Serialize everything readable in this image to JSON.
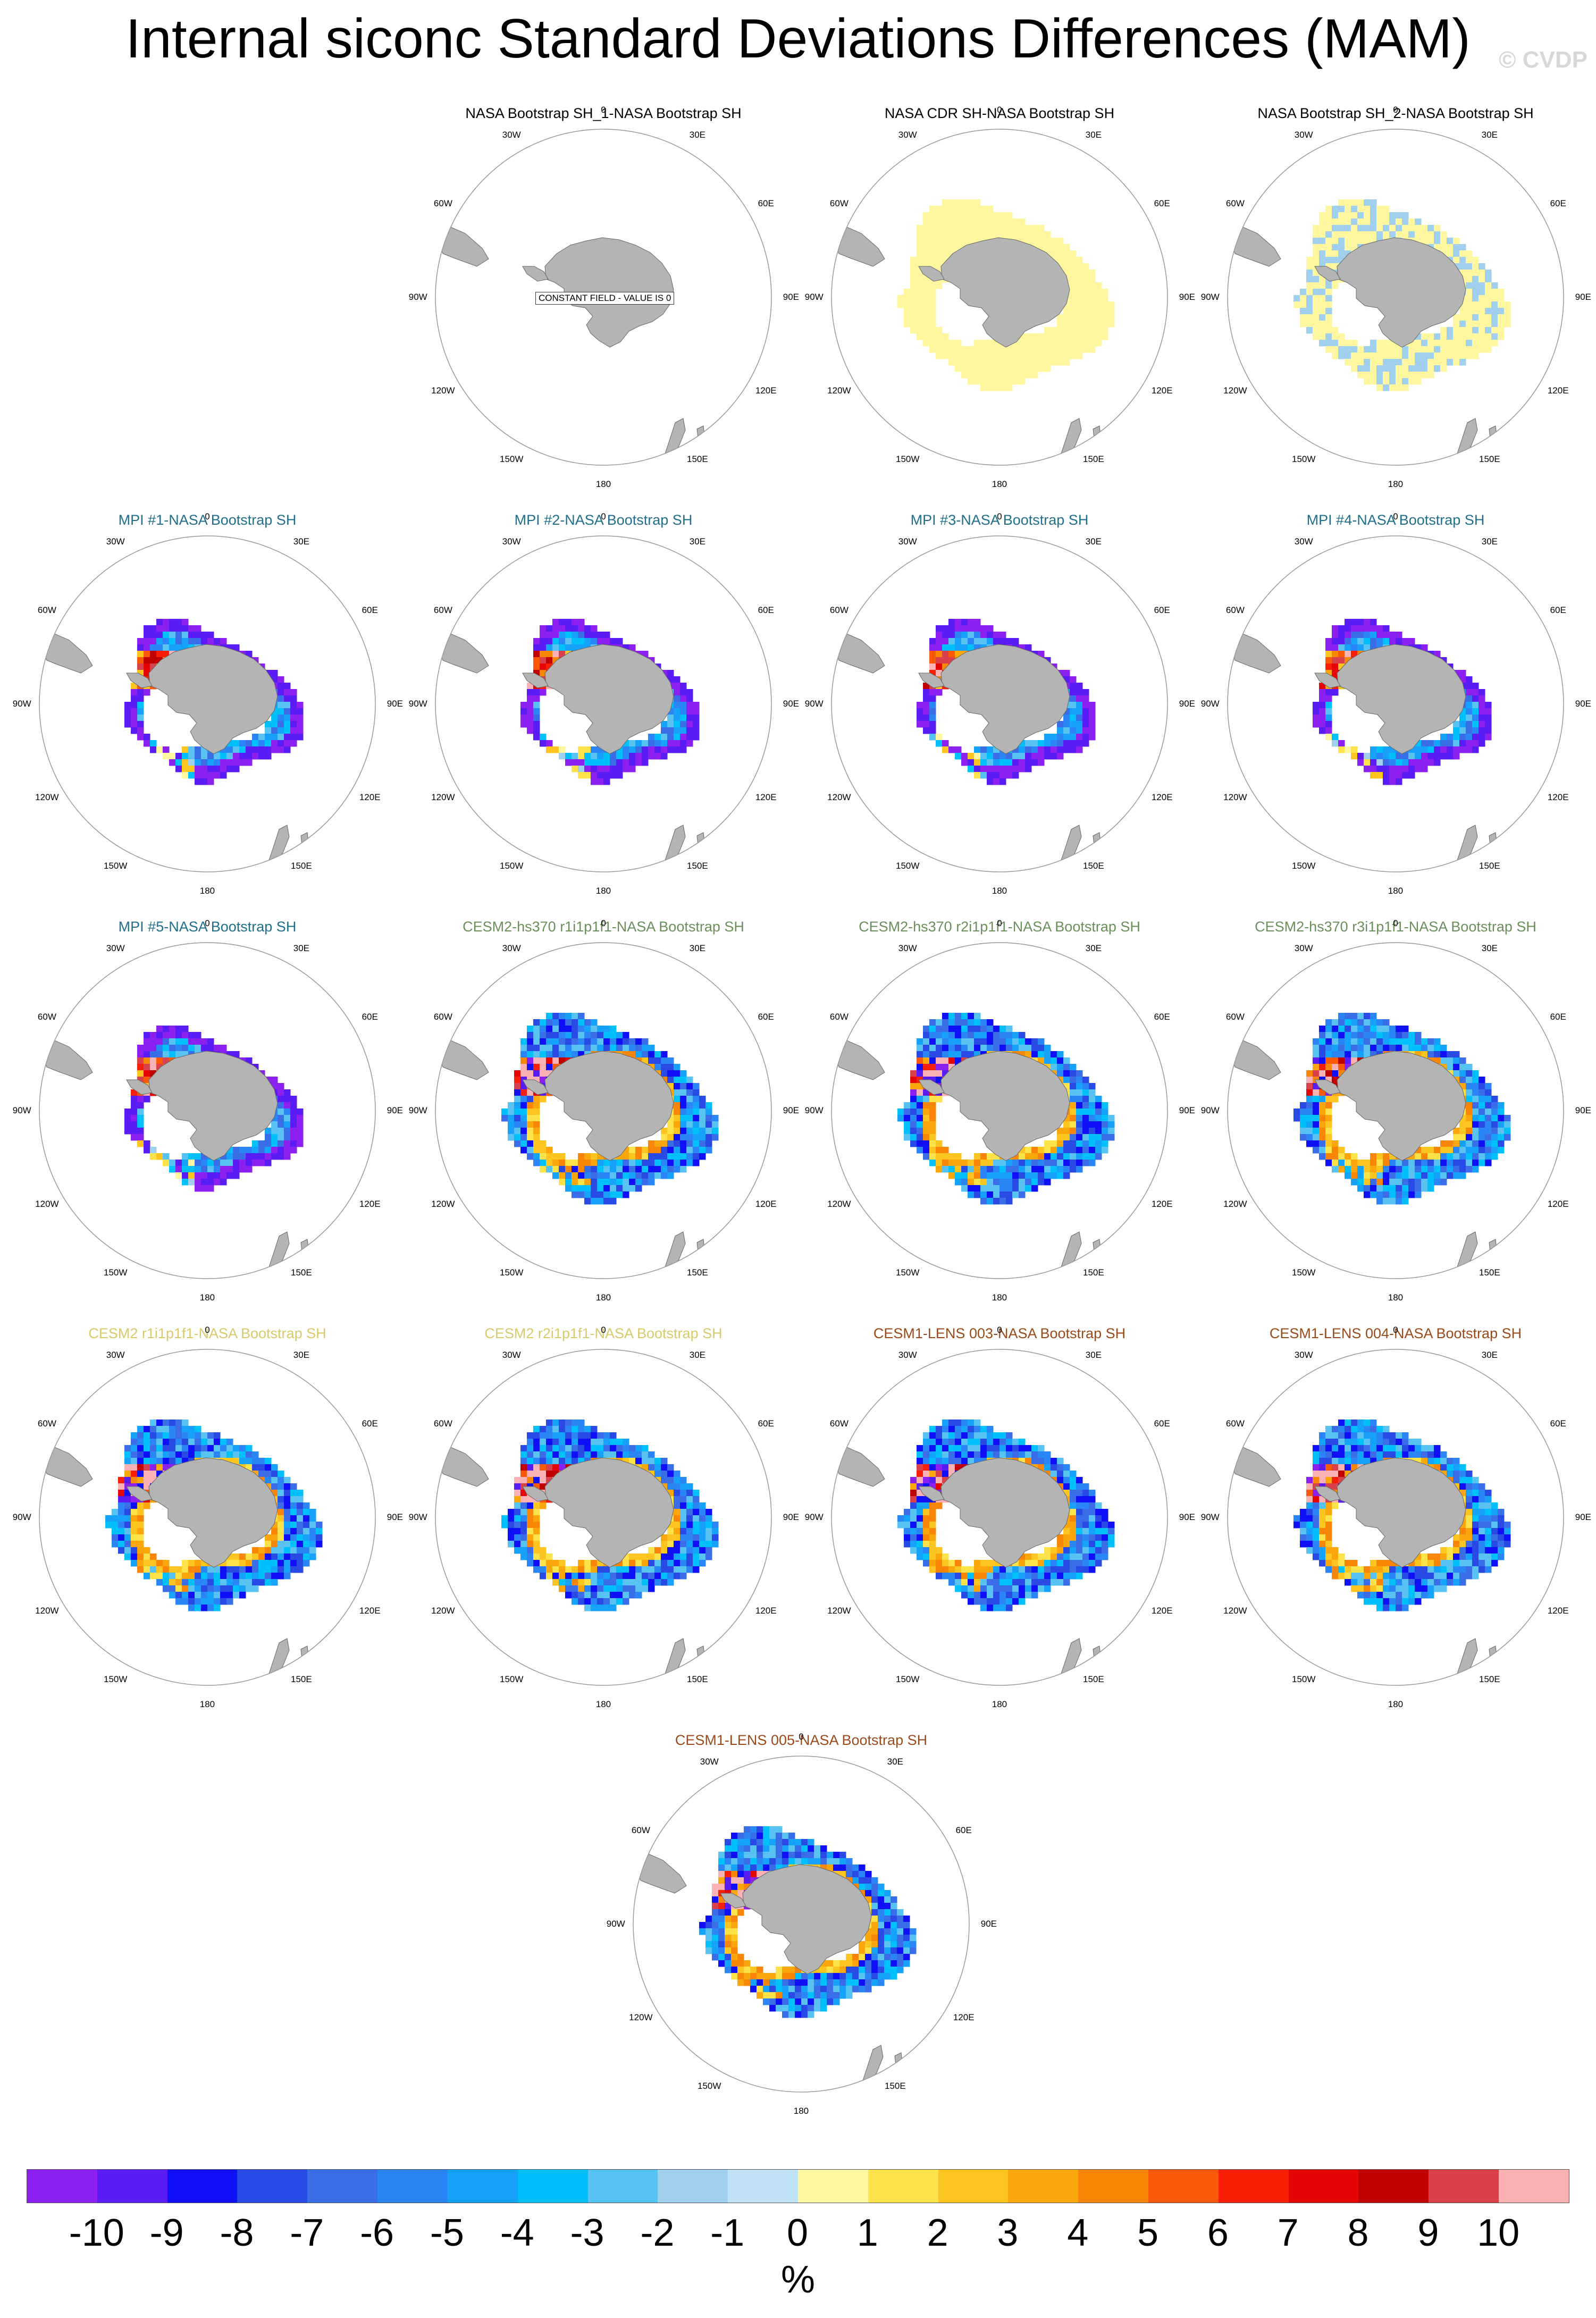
{
  "title": "Internal siconc Standard Deviations Differences (MAM)",
  "watermark": "© CVDP",
  "lon_labels": [
    "0",
    "30E",
    "60E",
    "90E",
    "120E",
    "150E",
    "180",
    "150W",
    "120W",
    "90W",
    "60W",
    "30W"
  ],
  "title_colors": {
    "obs": "#000000",
    "MPI": "#1f6f8b",
    "CESM2-hs370": "#6a8f5a",
    "CESM2": "#d8c96a",
    "CESM1-LENS": "#9a4a1a"
  },
  "panels": [
    {
      "id": "p1",
      "title": "NASA Bootstrap SH_1-NASA Bootstrap SH",
      "group": "obs",
      "pattern": "constant",
      "note": "CONSTANT FIELD - VALUE IS 0"
    },
    {
      "id": "p2",
      "title": "NASA CDR SH-NASA Bootstrap SH",
      "group": "obs",
      "pattern": "cdr"
    },
    {
      "id": "p3",
      "title": "NASA Bootstrap SH_2-NASA Bootstrap SH",
      "group": "obs",
      "pattern": "bs2"
    },
    {
      "id": "p4",
      "title": "MPI #1-NASA Bootstrap SH",
      "group": "MPI",
      "pattern": "mpi"
    },
    {
      "id": "p5",
      "title": "MPI #2-NASA Bootstrap SH",
      "group": "MPI",
      "pattern": "mpi"
    },
    {
      "id": "p6",
      "title": "MPI #3-NASA Bootstrap SH",
      "group": "MPI",
      "pattern": "mpi"
    },
    {
      "id": "p7",
      "title": "MPI #4-NASA Bootstrap SH",
      "group": "MPI",
      "pattern": "mpi"
    },
    {
      "id": "p8",
      "title": "MPI #5-NASA Bootstrap SH",
      "group": "MPI",
      "pattern": "mpi"
    },
    {
      "id": "p9",
      "title": "CESM2-hs370 r1i1p1f1-NASA Bootstrap SH",
      "group": "CESM2-hs370",
      "pattern": "cesm"
    },
    {
      "id": "p10",
      "title": "CESM2-hs370 r2i1p1f1-NASA Bootstrap SH",
      "group": "CESM2-hs370",
      "pattern": "cesm"
    },
    {
      "id": "p11",
      "title": "CESM2-hs370 r3i1p1f1-NASA Bootstrap SH",
      "group": "CESM2-hs370",
      "pattern": "cesm"
    },
    {
      "id": "p12",
      "title": "CESM2 r1i1p1f1-NASA Bootstrap SH",
      "group": "CESM2",
      "pattern": "cesm"
    },
    {
      "id": "p13",
      "title": "CESM2 r2i1p1f1-NASA Bootstrap SH",
      "group": "CESM2",
      "pattern": "cesm"
    },
    {
      "id": "p14",
      "title": "CESM1-LENS 003-NASA Bootstrap SH",
      "group": "CESM1-LENS",
      "pattern": "cesm"
    },
    {
      "id": "p15",
      "title": "CESM1-LENS 004-NASA Bootstrap SH",
      "group": "CESM1-LENS",
      "pattern": "cesm"
    },
    {
      "id": "p16",
      "title": "CESM1-LENS 005-NASA Bootstrap SH",
      "group": "CESM1-LENS",
      "pattern": "cesm"
    }
  ],
  "colorbar": {
    "colors": [
      "#8b20f0",
      "#5a1cf5",
      "#1010f8",
      "#2a4ae6",
      "#3a6ee8",
      "#2a86f6",
      "#16a2fb",
      "#00c0fb",
      "#58c2f2",
      "#a0d0ee",
      "#bfe2f5",
      "#fff7a0",
      "#fde24a",
      "#fcc520",
      "#fba70c",
      "#fa8608",
      "#fa5a08",
      "#f91f06",
      "#e60505",
      "#c10000",
      "#d9424a",
      "#fcb2b4"
    ],
    "ticks": [
      "-10",
      "-9",
      "-8",
      "-7",
      "-6",
      "-5",
      "-4",
      "-3",
      "-2",
      "-1",
      "0",
      "1",
      "2",
      "3",
      "4",
      "5",
      "6",
      "7",
      "8",
      "9",
      "10"
    ],
    "units": "%"
  }
}
